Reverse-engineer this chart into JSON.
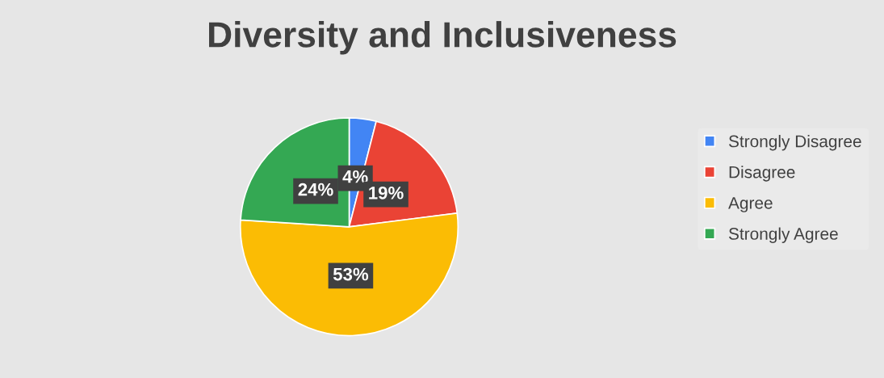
{
  "chart_data": {
    "type": "pie",
    "title": "Diversity and Inclusiveness",
    "categories": [
      "Strongly Disagree",
      "Disagree",
      "Agree",
      "Strongly Agree"
    ],
    "values": [
      4,
      19,
      53,
      24
    ],
    "colors": [
      "#4285f4",
      "#ea4335",
      "#fbbc04",
      "#34a853"
    ],
    "value_labels": [
      "4%",
      "19%",
      "53%",
      "24%"
    ],
    "legend": "right"
  }
}
